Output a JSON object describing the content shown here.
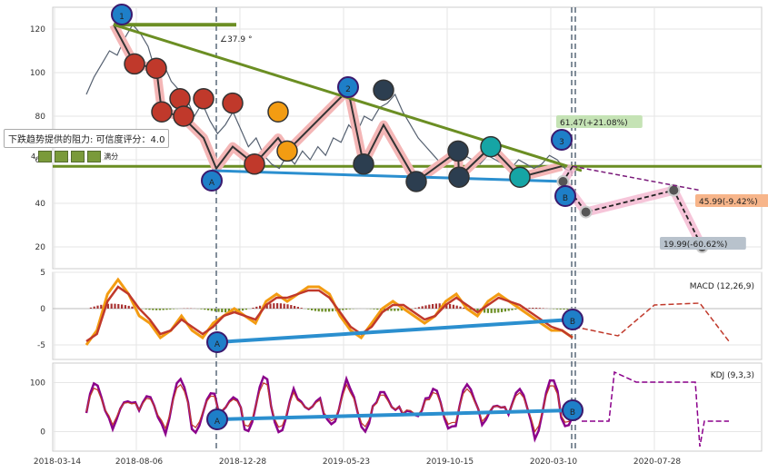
{
  "chart_data": [
    {
      "type": "line",
      "panel": "price",
      "ylim": [
        10,
        130
      ],
      "yticks": [
        20,
        40,
        60,
        80,
        100,
        120
      ],
      "xticks": [
        "2018-03-14",
        "2018-08-06",
        "2018-12-28",
        "2019-05-23",
        "2019-10-15",
        "2020-03-10",
        "2020-07-28"
      ],
      "angle_label": "∠37.9 °",
      "annotations": {
        "upper_target": "61.47(+21.08%)",
        "mid_target": "45.99(-9.42%)",
        "low_target": "19.99(-60.62%)"
      },
      "wave_labels": [
        "1",
        "2",
        "3",
        "A",
        "A",
        "B"
      ],
      "series": [
        {
          "values": [
            90,
            98,
            104,
            110,
            108,
            116,
            122,
            118,
            112,
            100,
            104,
            96,
            92,
            88,
            80,
            86,
            78,
            72,
            76,
            82,
            74,
            66,
            70,
            62,
            58,
            56,
            62,
            58,
            64,
            60,
            66,
            62,
            70,
            68,
            76,
            72,
            80,
            78,
            84,
            86,
            90,
            82,
            76,
            70,
            66,
            62,
            58,
            60,
            64,
            62,
            60,
            58,
            62,
            60,
            58,
            56,
            60,
            58,
            56,
            58,
            62,
            60,
            56,
            54
          ]
        },
        {
          "name": "",
          "values": [
            56,
            50,
            46,
            42,
            40
          ]
        }
      ],
      "pivots": [
        {
          "label": "1",
          "x": "2018-06-10",
          "y": 122
        },
        {
          "label": "2",
          "x": "2019-05-05",
          "y": 92
        },
        {
          "label": "3",
          "x": "2020-02-20",
          "y": 57
        },
        {
          "label": "A",
          "x": "2018-11-15",
          "y": 55
        },
        {
          "label": "B",
          "x": "2020-02-25",
          "y": 50
        }
      ],
      "resistance_level": 57,
      "projection": [
        {
          "x": "2020-03-18",
          "y": 50
        },
        {
          "x": "2020-04-20",
          "y": 36
        },
        {
          "x": "2020-08-25",
          "y": 45.99
        },
        {
          "x": "2020-10-05",
          "y": 19.99
        }
      ]
    },
    {
      "type": "line",
      "panel": "macd",
      "title": "MACD (12,26,9)",
      "ylim": [
        -7,
        5
      ],
      "yticks": [
        -5,
        0,
        5
      ],
      "series": [
        {
          "name": "",
          "values": [
            -5,
            -3,
            2,
            4,
            2,
            -1,
            -2,
            -4,
            -3,
            -1,
            -3,
            -4,
            -2,
            -1,
            0,
            -1,
            -2,
            1,
            2,
            1,
            2,
            3,
            3,
            2,
            -1,
            -3,
            -4,
            -2,
            0,
            1,
            0,
            -1,
            -2,
            -1,
            1,
            2,
            0,
            -1,
            1,
            2,
            1,
            0,
            -1,
            -2,
            -3,
            -3,
            -4
          ]
        },
        {
          "name": "",
          "values": [
            -4.5,
            -3.5,
            1,
            3,
            2,
            0,
            -1.5,
            -3.5,
            -3,
            -1.5,
            -2.5,
            -3.5,
            -2.5,
            -1,
            -0.5,
            -1,
            -1.5,
            0.5,
            1.5,
            1.5,
            2,
            2.5,
            2.5,
            1.5,
            -0.5,
            -2.5,
            -3.5,
            -2.5,
            -0.5,
            0.5,
            0.5,
            -0.5,
            -1.5,
            -1,
            0.5,
            1.5,
            0.5,
            -0.5,
            0.5,
            1.5,
            1,
            0.5,
            -0.5,
            -1.5,
            -2.5,
            -3,
            -4
          ]
        }
      ],
      "trend_labels": [
        "A",
        "B"
      ]
    },
    {
      "type": "line",
      "panel": "kdj",
      "title": "KDJ (9,3,3)",
      "ylim": [
        -40,
        140
      ],
      "yticks": [
        0,
        100
      ],
      "trend_labels": [
        "A",
        "B"
      ]
    }
  ],
  "tooltip": {
    "text": "下跌趋势提供的阻力: 可信度评分：4.0",
    "score_value": "4",
    "score_suffix": "满分"
  }
}
